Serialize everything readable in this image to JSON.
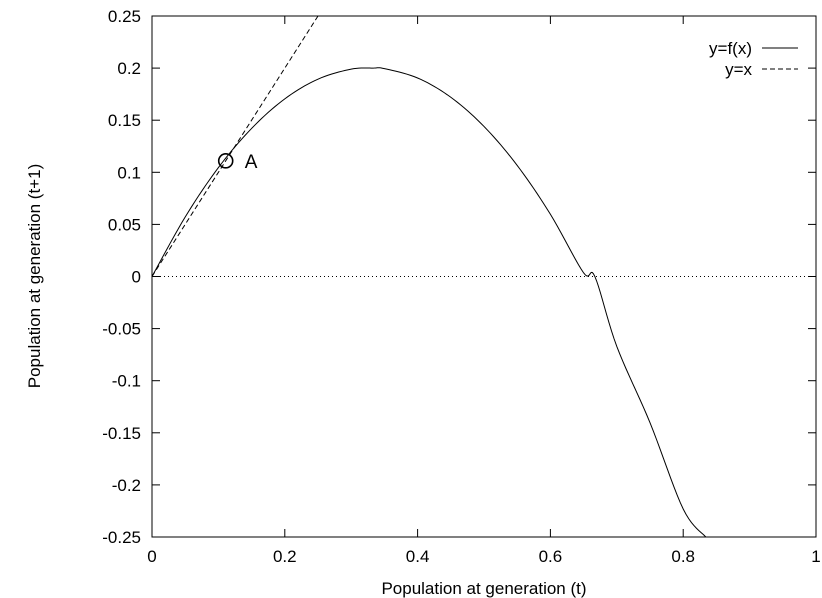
{
  "chart_data": {
    "type": "line",
    "title": "",
    "xlabel": "Population at generation (t)",
    "ylabel": "Population at generation (t+1)",
    "xlim": [
      0,
      1
    ],
    "ylim": [
      -0.25,
      0.25
    ],
    "xticks": [
      0,
      0.2,
      0.4,
      0.6,
      0.8,
      1
    ],
    "xtick_labels": [
      "0",
      "0.2",
      "0.4",
      "0.6",
      "0.8",
      "1"
    ],
    "yticks": [
      -0.25,
      -0.2,
      -0.15,
      -0.1,
      -0.05,
      0,
      0.05,
      0.1,
      0.15,
      0.2,
      0.25
    ],
    "ytick_labels": [
      "-0.25",
      "-0.2",
      "-0.15",
      "-0.1",
      "-0.05",
      "0",
      "0.05",
      "0.1",
      "0.15",
      "0.2",
      "0.25"
    ],
    "grid": false,
    "legend_position": "top-right",
    "series": [
      {
        "name": "y=f(x)",
        "style": "solid",
        "color": "#000000",
        "x": [
          0,
          0.05,
          0.1,
          0.15,
          0.2,
          0.25,
          0.3,
          0.333,
          0.35,
          0.4,
          0.45,
          0.5,
          0.55,
          0.6,
          0.65,
          0.667,
          0.7,
          0.75,
          0.8,
          0.834
        ],
        "y": [
          0,
          0.0571,
          0.1045,
          0.1421,
          0.1705,
          0.1894,
          0.199,
          0.2,
          0.1995,
          0.1905,
          0.172,
          0.144,
          0.1066,
          0.0597,
          0.0035,
          -0.0001,
          -0.0671,
          -0.1403,
          -0.2231,
          -0.25
        ]
      },
      {
        "name": "y=x",
        "style": "dashed",
        "color": "#000000",
        "x": [
          0,
          0.25
        ],
        "y": [
          0,
          0.25
        ]
      },
      {
        "name": "",
        "style": "dotted",
        "color": "#000000",
        "x": [
          0,
          1
        ],
        "y": [
          0,
          0
        ]
      }
    ],
    "annotations": [
      {
        "label": "A",
        "x": 0.111,
        "y": 0.111,
        "marker": "open-circle"
      }
    ]
  }
}
